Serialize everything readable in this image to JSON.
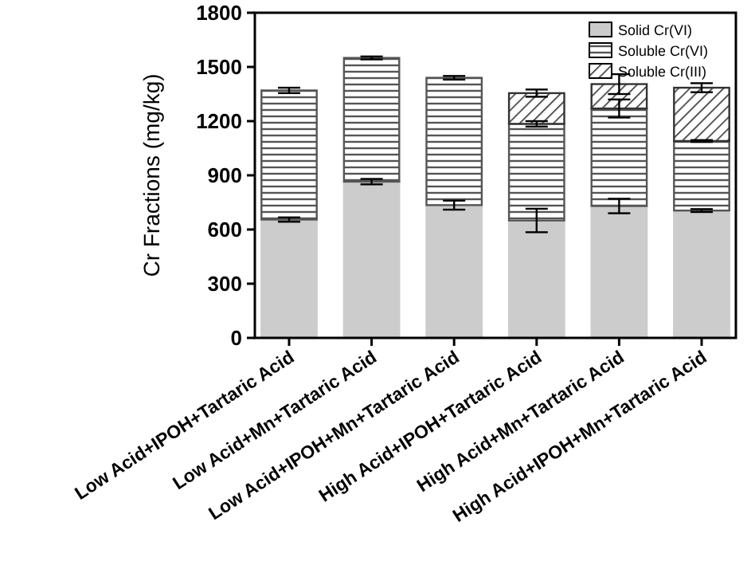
{
  "chart_data": {
    "type": "bar",
    "stacked": true,
    "ylabel": "Cr Fractions (mg/kg)",
    "categories": [
      "Low Acid+IPOH+Tartaric Acid",
      "Low Acid+Mn+Tartaric Acid",
      "Low Acid+IPOH+Mn+Tartaric Acid",
      "High Acid+IPOH+Tartaric Acid",
      "High Acid+Mn+Tartaric Acid",
      "High Acid+IPOH+Mn+Tartaric Acid"
    ],
    "series": [
      {
        "name": "Solid  Cr(VI)",
        "color": "#cccccc",
        "values": [
          655,
          865,
          735,
          650,
          730,
          705
        ],
        "errors": [
          12,
          15,
          25,
          65,
          40,
          8
        ]
      },
      {
        "name": "Soluble Cr(VI)",
        "color": "#555555",
        "values": [
          715,
          685,
          705,
          535,
          540,
          385
        ],
        "errors": [
          15,
          8,
          10,
          15,
          50,
          5
        ]
      },
      {
        "name": "Soluble Cr(III)",
        "color": "#333333",
        "values": [
          0,
          0,
          0,
          170,
          135,
          295
        ],
        "errors": [
          null,
          null,
          null,
          20,
          55,
          25
        ]
      }
    ],
    "ylim": [
      0,
      1800
    ],
    "yticks": [
      0,
      300,
      600,
      900,
      1200,
      1500,
      1800
    ],
    "legend": "top right"
  }
}
